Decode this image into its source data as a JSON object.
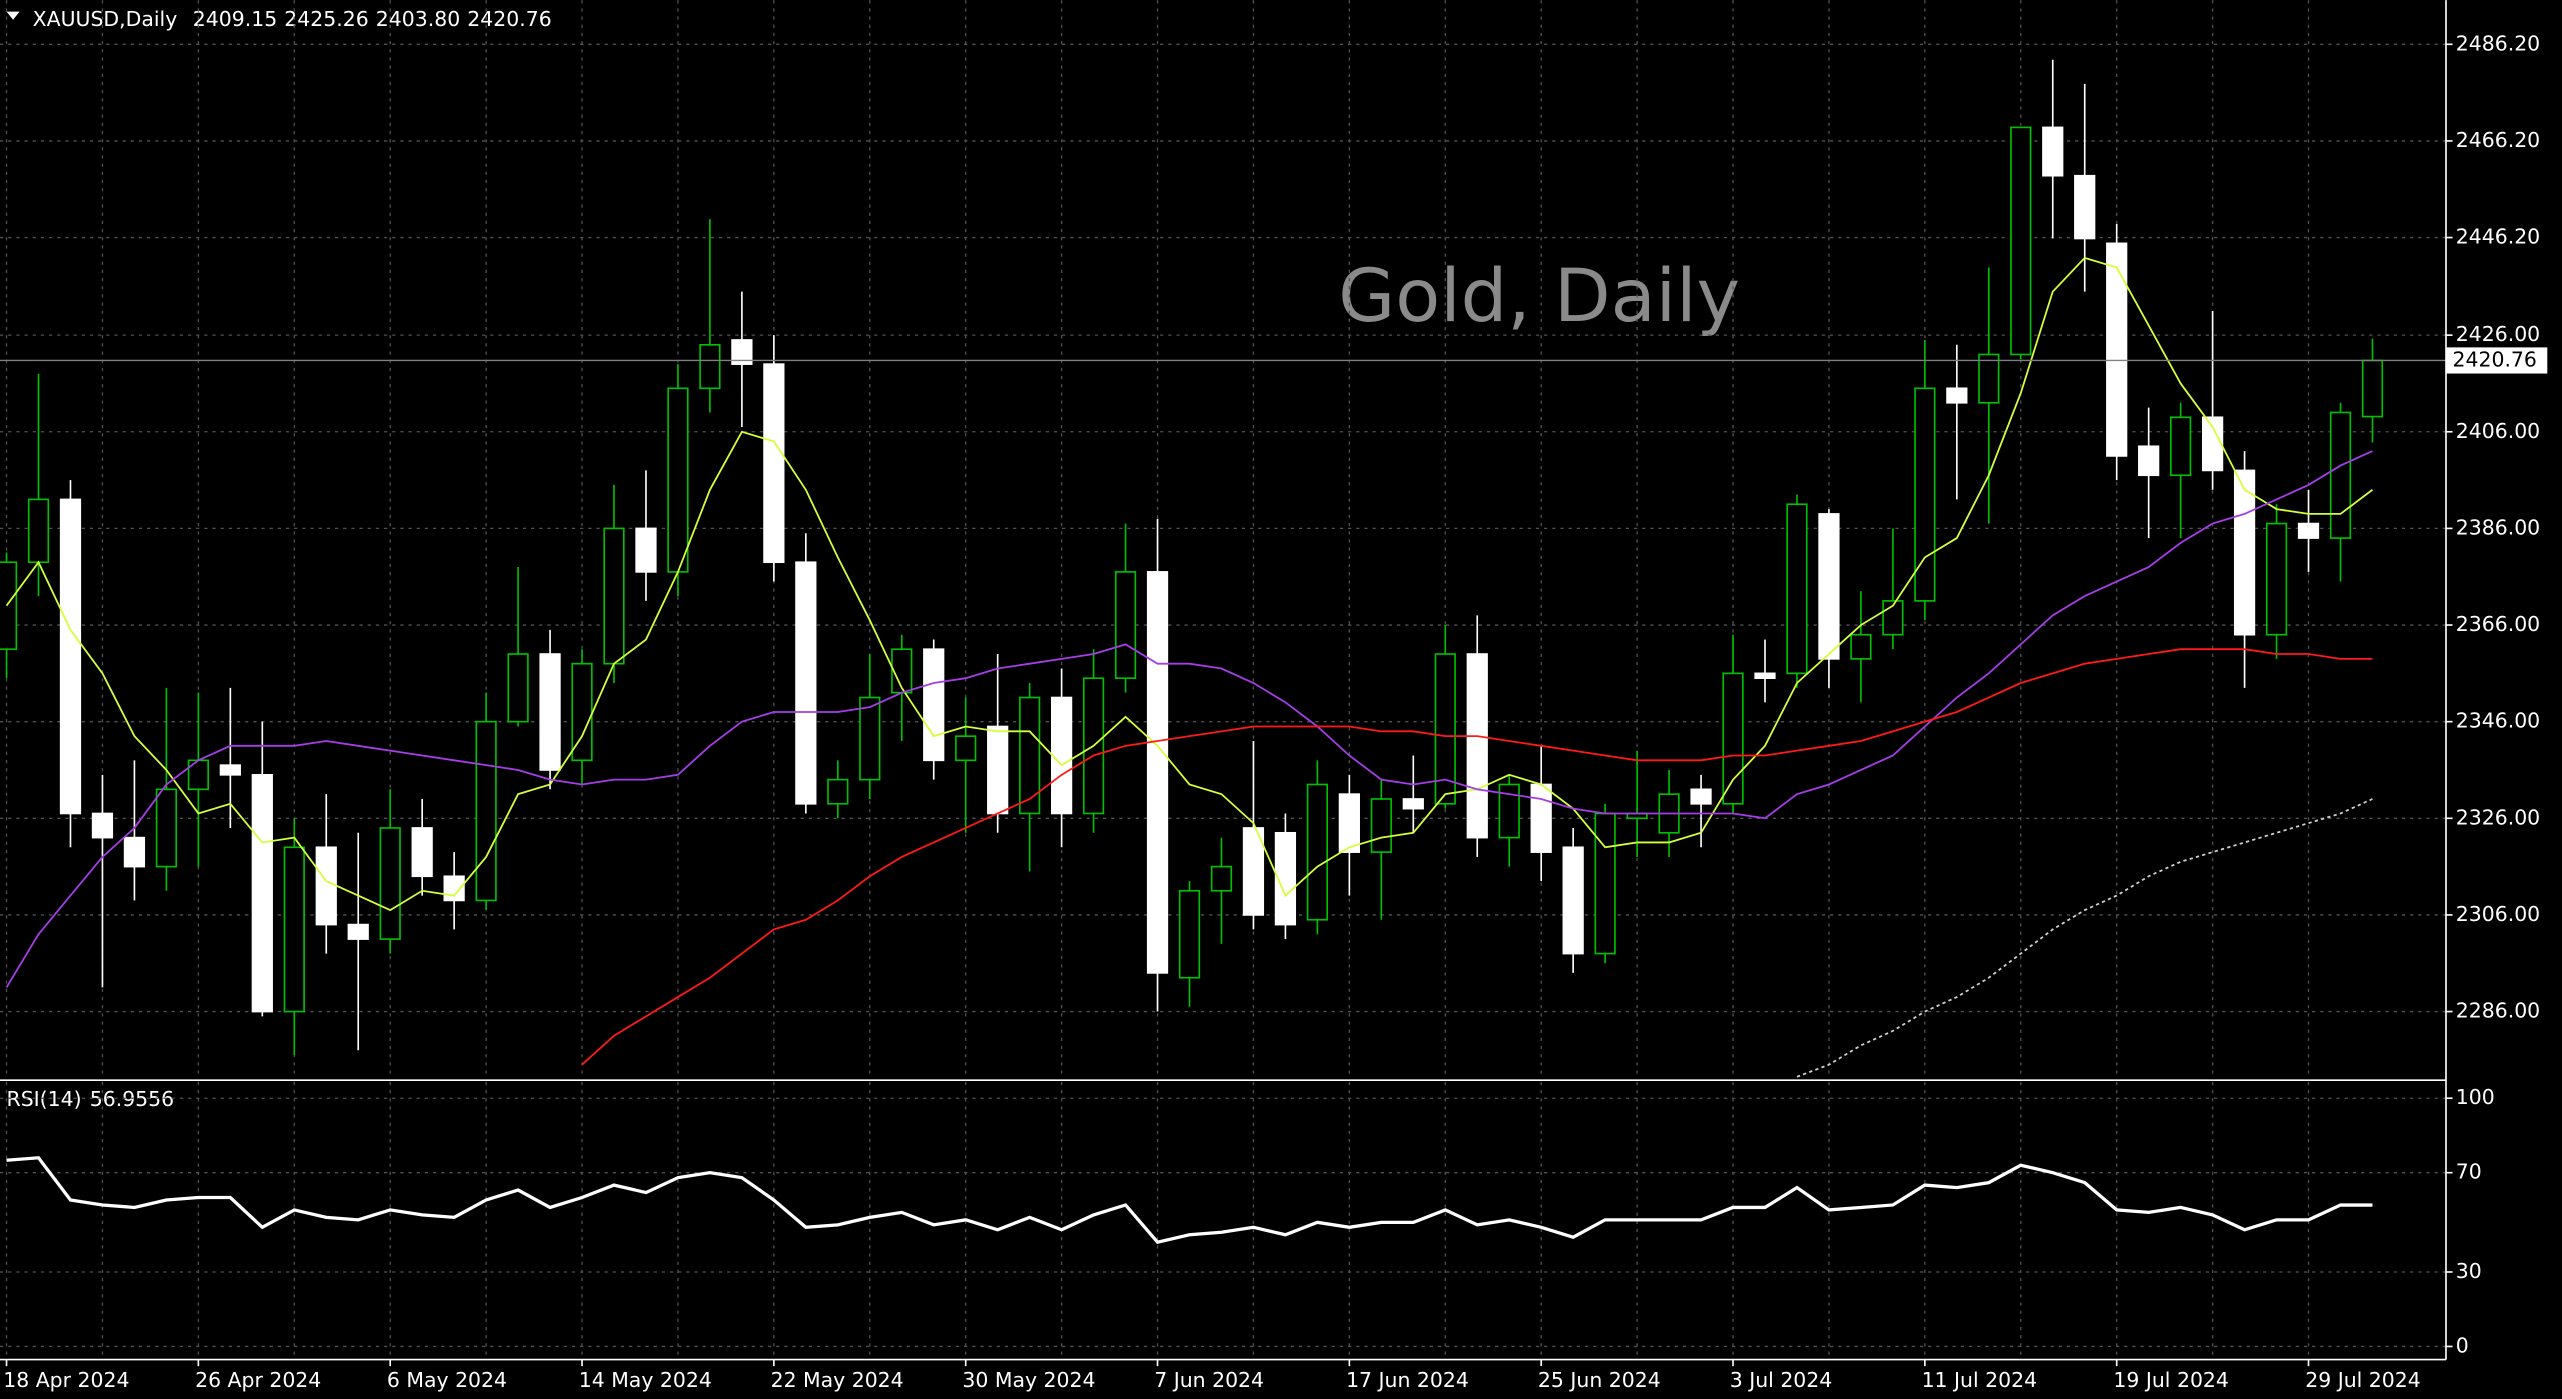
{
  "chart_data": [
    {
      "type": "candlestick",
      "title": "XAUUSD,Daily",
      "value_labels": [
        "2409.15",
        "2425.26",
        "2403.80",
        "2420.76"
      ],
      "watermark": "Gold, Daily",
      "categories": [
        "18 Apr 2024",
        null,
        null,
        null,
        null,
        null,
        "26 Apr 2024",
        null,
        null,
        null,
        null,
        null,
        "6 May 2024",
        null,
        null,
        null,
        null,
        null,
        "14 May 2024",
        null,
        null,
        null,
        null,
        null,
        "22 May 2024",
        null,
        null,
        null,
        null,
        null,
        "30 May 2024",
        null,
        null,
        null,
        null,
        null,
        "7 Jun 2024",
        null,
        null,
        null,
        null,
        null,
        "17 Jun 2024",
        null,
        null,
        null,
        null,
        null,
        "25 Jun 2024",
        null,
        null,
        null,
        null,
        null,
        "3 Jul 2024",
        null,
        null,
        null,
        null,
        null,
        "11 Jul 2024",
        null,
        null,
        null,
        null,
        null,
        "19 Jul 2024",
        null,
        null,
        null,
        null,
        null,
        "29 Jul 2024",
        null,
        null
      ],
      "open": [
        2361,
        2379,
        2392,
        2327,
        2322,
        2316,
        2332,
        2337,
        2335,
        2286,
        2320,
        2304,
        2301,
        2324,
        2314,
        2309,
        2346,
        2360,
        2338,
        2358,
        2386,
        2377,
        2415,
        2425,
        2420,
        2379,
        2329,
        2334,
        2352,
        2361,
        2338,
        2345,
        2327,
        2351,
        2327,
        2355,
        2377,
        2293,
        2311,
        2324,
        2323,
        2305,
        2331,
        2319,
        2330,
        2329,
        2360,
        2322,
        2333,
        2320,
        2298,
        2326,
        2323,
        2332,
        2329,
        2356,
        2356,
        2389,
        2359,
        2364,
        2371,
        2415,
        2412,
        2422,
        2469,
        2459,
        2445,
        2403,
        2397,
        2409,
        2398,
        2364,
        2387,
        2384,
        2409.15
      ],
      "high": [
        2381,
        2418,
        2396,
        2335,
        2338,
        2353,
        2352,
        2353,
        2346,
        2326,
        2331,
        2323,
        2332,
        2330,
        2319,
        2352,
        2378,
        2365,
        2361,
        2395,
        2398,
        2420,
        2450,
        2435,
        2426,
        2385,
        2338,
        2360,
        2364,
        2363,
        2351,
        2360,
        2354,
        2357,
        2361,
        2387,
        2388,
        2313,
        2322,
        2342,
        2327,
        2338,
        2335,
        2334,
        2339,
        2366,
        2368,
        2335,
        2341,
        2324,
        2329,
        2340,
        2336,
        2335,
        2364,
        2363,
        2393,
        2390,
        2373,
        2386,
        2425,
        2424,
        2440,
        2469,
        2483,
        2478,
        2449,
        2411,
        2412,
        2431,
        2402,
        2391,
        2394,
        2412,
        2425.26
      ],
      "low": [
        2355,
        2372,
        2320,
        2291,
        2309,
        2311,
        2316,
        2324,
        2285,
        2277,
        2298,
        2278,
        2298,
        2310,
        2303,
        2307,
        2345,
        2332,
        2333,
        2354,
        2371,
        2372,
        2410,
        2407,
        2375,
        2327,
        2326,
        2330,
        2342,
        2334,
        2323,
        2323,
        2315,
        2320,
        2323,
        2352,
        2286,
        2287,
        2300,
        2303,
        2301,
        2302,
        2310,
        2305,
        2323,
        2328,
        2318,
        2316,
        2313,
        2294,
        2296,
        2318,
        2318,
        2320,
        2327,
        2350,
        2353,
        2353,
        2350,
        2361,
        2367,
        2392,
        2387,
        2421,
        2446,
        2435,
        2396,
        2384,
        2384,
        2394,
        2353,
        2359,
        2377,
        2375,
        2403.8
      ],
      "close": [
        2379,
        2392,
        2327,
        2322,
        2316,
        2332,
        2338,
        2335,
        2286,
        2320,
        2304,
        2301,
        2324,
        2314,
        2309,
        2346,
        2360,
        2336,
        2358,
        2386,
        2377,
        2415,
        2424,
        2420,
        2379,
        2329,
        2334,
        2351,
        2361,
        2338,
        2343,
        2327,
        2351,
        2327,
        2355,
        2377,
        2294,
        2311,
        2316,
        2306,
        2304,
        2333,
        2319,
        2330,
        2328,
        2360,
        2322,
        2333,
        2319,
        2298,
        2327,
        2327,
        2331,
        2329,
        2356,
        2355,
        2391,
        2359,
        2364,
        2371,
        2415,
        2412,
        2422,
        2469,
        2459,
        2446,
        2401,
        2397,
        2409,
        2398,
        2364,
        2387,
        2384,
        2410,
        2420.76
      ],
      "up_color": "#00c000",
      "down_color": "#ffffff",
      "series": [
        {
          "color": "#d4ff3a",
          "values": [
            2370,
            2379,
            2365,
            2356,
            2343,
            2336,
            2327,
            2329,
            2321,
            2322,
            2313,
            2310,
            2307,
            2311,
            2310,
            2318,
            2331,
            2333,
            2343,
            2358,
            2363,
            2377,
            2394,
            2406,
            2404,
            2394,
            2380,
            2367,
            2353,
            2343,
            2345,
            2344,
            2344,
            2337,
            2341,
            2347,
            2341,
            2333,
            2331,
            2325,
            2310,
            2316,
            2320,
            2322,
            2323,
            2331,
            2332,
            2335,
            2333,
            2328,
            2320,
            2321,
            2321,
            2323,
            2334,
            2341,
            2354,
            2360,
            2366,
            2370,
            2380,
            2384,
            2397,
            2414,
            2435,
            2442,
            2440,
            2428,
            2416,
            2407,
            2394,
            2390,
            2389,
            2389,
            2394
          ]
        },
        {
          "color": "#a43ee6",
          "values": [
            2291,
            2302,
            2310,
            2318,
            2324,
            2333,
            2338,
            2341,
            2341,
            2341,
            2342,
            2341,
            2340,
            2339,
            2338,
            2337,
            2336,
            2334,
            2333,
            2334,
            2334,
            2335,
            2341,
            2346,
            2348,
            2348,
            2348,
            2349,
            2352,
            2354,
            2355,
            2357,
            2358,
            2359,
            2360,
            2362,
            2358,
            2358,
            2357,
            2354,
            2350,
            2345,
            2339,
            2334,
            2333,
            2334,
            2332,
            2331,
            2330,
            2328,
            2327,
            2327,
            2327,
            2327,
            2327,
            2326,
            2331,
            2333,
            2336,
            2339,
            2345,
            2351,
            2356,
            2362,
            2368,
            2372,
            2375,
            2378,
            2383,
            2387,
            2389,
            2392,
            2395,
            2399,
            2402
          ]
        },
        {
          "color": "#ff1a1a",
          "values": [
            null,
            null,
            null,
            null,
            null,
            null,
            null,
            null,
            null,
            null,
            null,
            null,
            null,
            null,
            null,
            null,
            null,
            null,
            2275,
            2281,
            2285,
            2289,
            2293,
            2298,
            2303,
            2305,
            2309,
            2314,
            2318,
            2321,
            2324,
            2327,
            2330,
            2335,
            2339,
            2341,
            2342,
            2343,
            2344,
            2345,
            2345,
            2345,
            2345,
            2344,
            2344,
            2343,
            2343,
            2342,
            2341,
            2340,
            2339,
            2338,
            2338,
            2338,
            2339,
            2339,
            2340,
            2341,
            2342,
            2344,
            2346,
            2348,
            2351,
            2354,
            2356,
            2358,
            2359,
            2360,
            2361,
            2361,
            2361,
            2360,
            2360,
            2359,
            2359
          ]
        },
        {
          "color": "#cfcfcf",
          "dashed": true,
          "values": [
            null,
            null,
            null,
            null,
            null,
            null,
            null,
            null,
            null,
            null,
            null,
            null,
            null,
            null,
            null,
            null,
            null,
            null,
            null,
            null,
            null,
            null,
            null,
            null,
            null,
            null,
            null,
            null,
            null,
            null,
            null,
            null,
            null,
            null,
            null,
            null,
            null,
            null,
            null,
            null,
            null,
            null,
            null,
            null,
            null,
            null,
            null,
            null,
            null,
            null,
            null,
            null,
            null,
            null,
            null,
            null,
            2272.5,
            2275,
            2279,
            2282,
            2286,
            2289,
            2293,
            2298,
            2303,
            2307,
            2310,
            2314,
            2317,
            2319,
            2321,
            2323,
            2325,
            2327,
            2330
          ]
        }
      ],
      "ylim": [
        2272.13,
        2495.33
      ],
      "yticks": [
        {
          "value": 2286,
          "label": "2286.00"
        },
        {
          "value": 2306,
          "label": "2306.00"
        },
        {
          "value": 2326,
          "label": "2326.00"
        },
        {
          "value": 2346,
          "label": "2346.00"
        },
        {
          "value": 2366,
          "label": "2366.00"
        },
        {
          "value": 2386,
          "label": "2386.00"
        },
        {
          "value": 2406,
          "label": "2406.00"
        },
        {
          "value": 2426,
          "label": "2426.00"
        },
        {
          "value": 2446.2,
          "label": "2446.20"
        },
        {
          "value": 2466.2,
          "label": "2466.20"
        },
        {
          "value": 2486.2,
          "label": "2486.20"
        }
      ],
      "grid": true
    },
    {
      "type": "line",
      "title": "RSI(14)",
      "series": [
        {
          "color": "#ffffff",
          "values": [
            75,
            76,
            59,
            57,
            56,
            59,
            60,
            60,
            48,
            55,
            52,
            51,
            55,
            53,
            52,
            59,
            63,
            56,
            60,
            65,
            62,
            68,
            70,
            68,
            59,
            48,
            49,
            52,
            54,
            49,
            51,
            47,
            52,
            47,
            53,
            57,
            42,
            45,
            46,
            48,
            45,
            50,
            48,
            50,
            50,
            55,
            49,
            51,
            48,
            44,
            51,
            51,
            51,
            51,
            56,
            56,
            64,
            55,
            56,
            57,
            65,
            64,
            66,
            73,
            70,
            66,
            55,
            54,
            56,
            53,
            47,
            51,
            51,
            57,
            56.9556
          ]
        }
      ],
      "ylim": [
        -5.3,
        106.6
      ],
      "yticks": [
        0,
        30,
        70,
        100
      ],
      "grid": true
    }
  ]
}
